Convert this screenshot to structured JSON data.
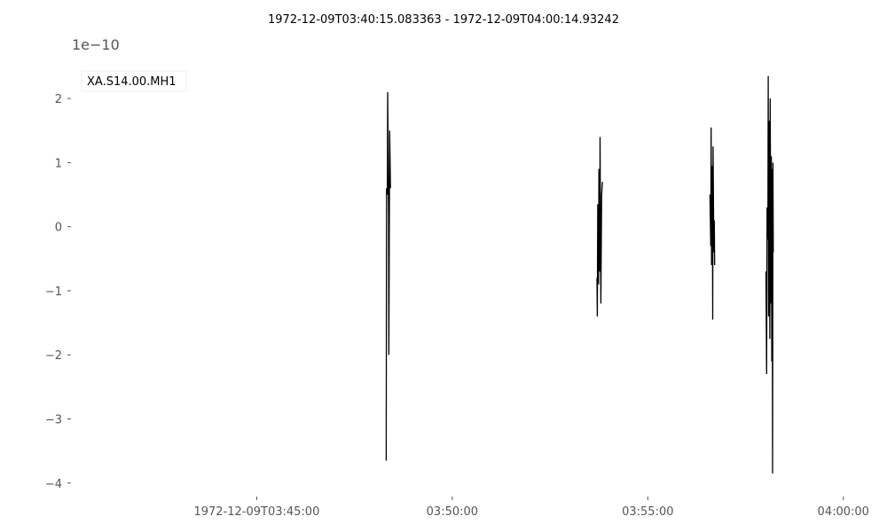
{
  "chart_data": {
    "type": "line",
    "title": "1972-12-09T03:40:15.083363  -  1972-12-09T04:00:14.93242",
    "xlabel": "",
    "ylabel": "",
    "y_offset_label": "1e−10",
    "y_units_multiplier": 1e-10,
    "x_units": "minutes after 1972-12-09T03:40:15.083363",
    "xlim": [
      0,
      20.3
    ],
    "ylim": [
      -4.1,
      2.5
    ],
    "grid": false,
    "legend": "top-left",
    "x_ticks": [
      {
        "value": 4.75,
        "label": "1972-12-09T03:45:00"
      },
      {
        "value": 9.75,
        "label": "03:50:00"
      },
      {
        "value": 14.75,
        "label": "03:55:00"
      },
      {
        "value": 19.75,
        "label": "04:00:00"
      }
    ],
    "y_ticks": [
      {
        "value": 2,
        "label": "2"
      },
      {
        "value": 1,
        "label": "1"
      },
      {
        "value": 0,
        "label": "0"
      },
      {
        "value": -1,
        "label": "−1"
      },
      {
        "value": -2,
        "label": "−2"
      },
      {
        "value": -3,
        "label": "−3"
      },
      {
        "value": -4,
        "label": "−4"
      }
    ],
    "series": [
      {
        "name": "XA.S14.00.MH1",
        "color": "#000000",
        "segments": [
          [
            [
              8.06,
              -3.65
            ],
            [
              8.07,
              0.6
            ],
            [
              8.09,
              0.5
            ],
            [
              8.1,
              2.1
            ],
            [
              8.12,
              0.2
            ],
            [
              8.13,
              -2.0
            ],
            [
              8.15,
              1.5
            ],
            [
              8.17,
              0.6
            ]
          ],
          [
            [
              13.45,
              -0.8
            ],
            [
              13.46,
              -1.4
            ],
            [
              13.47,
              0.35
            ],
            [
              13.49,
              -0.9
            ],
            [
              13.5,
              0.9
            ],
            [
              13.52,
              -0.7
            ],
            [
              13.53,
              1.4
            ],
            [
              13.55,
              -1.2
            ],
            [
              13.57,
              0.5
            ],
            [
              13.59,
              0.7
            ]
          ],
          [
            [
              16.34,
              0.5
            ],
            [
              16.36,
              -0.3
            ],
            [
              16.37,
              1.55
            ],
            [
              16.38,
              -0.6
            ],
            [
              16.4,
              0.95
            ],
            [
              16.41,
              -1.45
            ],
            [
              16.42,
              1.25
            ],
            [
              16.44,
              -0.4
            ],
            [
              16.45,
              0.1
            ],
            [
              16.46,
              -0.6
            ]
          ],
          [
            [
              17.77,
              -0.7
            ],
            [
              17.79,
              -2.3
            ],
            [
              17.8,
              0.3
            ],
            [
              17.82,
              -0.2
            ],
            [
              17.83,
              2.35
            ],
            [
              17.84,
              -1.4
            ],
            [
              17.86,
              1.65
            ],
            [
              17.87,
              -1.75
            ],
            [
              17.88,
              2.0
            ],
            [
              17.9,
              -1.2
            ],
            [
              17.91,
              1.1
            ],
            [
              17.92,
              -2.1
            ],
            [
              17.93,
              0.9
            ],
            [
              17.94,
              -3.85
            ],
            [
              17.95,
              1.0
            ],
            [
              17.96,
              -0.4
            ]
          ]
        ]
      }
    ]
  }
}
